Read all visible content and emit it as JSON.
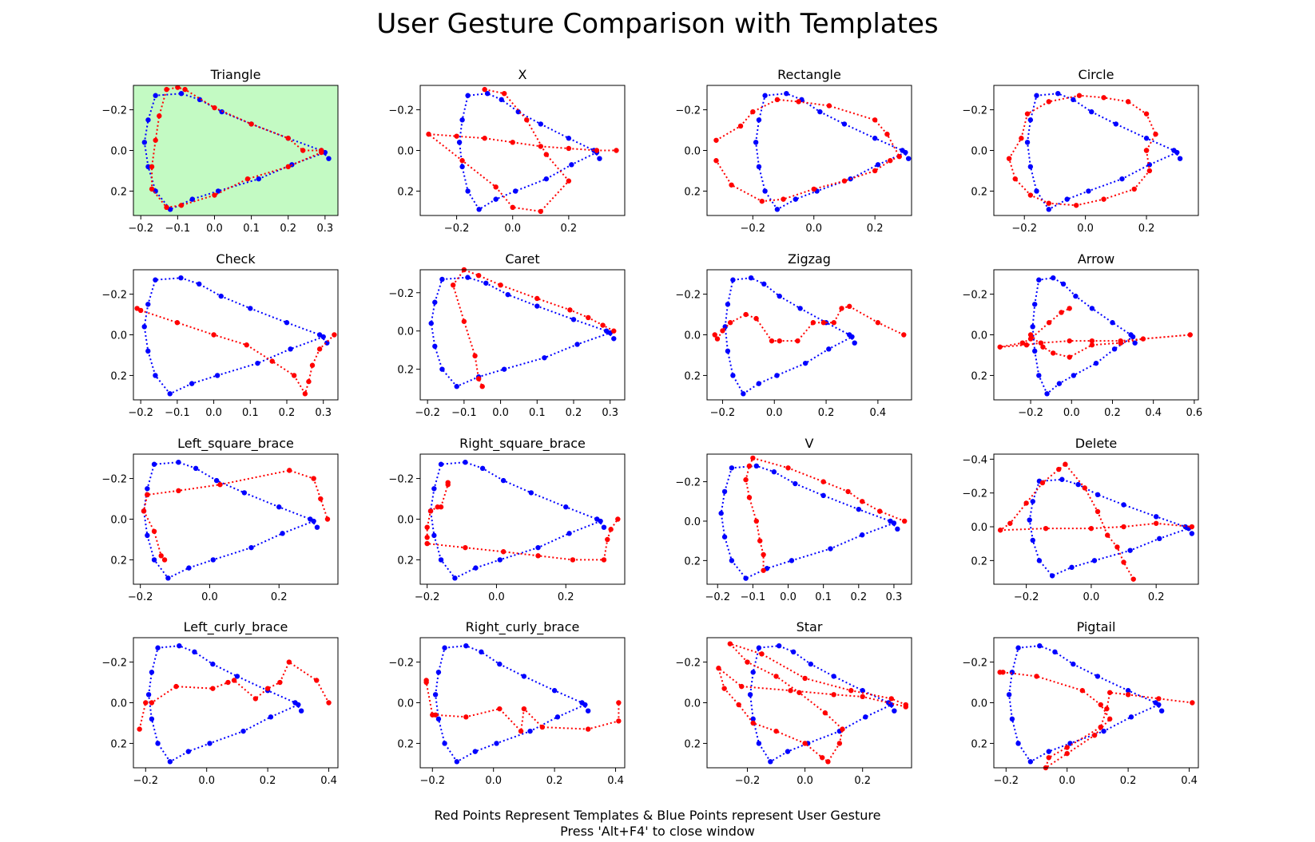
{
  "title": "User Gesture Comparison with Templates",
  "footer": {
    "line1": "Red Points Represent Templates & Blue Points represent User Gesture",
    "line2": "Press 'Alt+F4' to close window"
  },
  "colors": {
    "template": "#ff0000",
    "user": "#0000ff",
    "highlight": "#c3fac3"
  },
  "chart_data": {
    "type": "scatter",
    "y_inverted": true,
    "user_gesture": {
      "name": "User Gesture",
      "x": [
        0.31,
        0.29,
        0.2,
        0.1,
        0.02,
        -0.04,
        -0.09,
        -0.16,
        -0.18,
        -0.19,
        -0.18,
        -0.16,
        -0.12,
        -0.06,
        0.01,
        0.12,
        0.21,
        0.3
      ],
      "y": [
        0.04,
        0.0,
        -0.06,
        -0.13,
        -0.19,
        -0.25,
        -0.28,
        -0.27,
        -0.15,
        -0.04,
        0.08,
        0.2,
        0.29,
        0.24,
        0.2,
        0.14,
        0.07,
        0.01
      ]
    },
    "panels": [
      {
        "name": "Triangle",
        "highlight": true,
        "xticks": [
          -0.2,
          -0.1,
          0.0,
          0.1,
          0.2,
          0.3
        ],
        "yticks": [
          -0.2,
          0.0,
          0.2
        ],
        "xlim": [
          -0.22,
          0.335
        ],
        "ylim": [
          -0.32,
          0.32
        ],
        "template": {
          "x": [
            0.29,
            0.24,
            0.2,
            0.1,
            0.0,
            -0.08,
            -0.1,
            -0.13,
            -0.15,
            -0.16,
            -0.17,
            -0.17,
            -0.13,
            -0.09,
            0.0,
            0.09,
            0.2,
            0.29
          ],
          "y": [
            0.0,
            0.0,
            -0.06,
            -0.13,
            -0.21,
            -0.3,
            -0.31,
            -0.3,
            -0.17,
            -0.05,
            0.08,
            0.19,
            0.28,
            0.27,
            0.22,
            0.14,
            0.08,
            0.01
          ]
        }
      },
      {
        "name": "X",
        "highlight": false,
        "xticks": [
          -0.2,
          0.0,
          0.2
        ],
        "yticks": [
          -0.2,
          0.0,
          0.2
        ],
        "xlim": [
          -0.33,
          0.4
        ],
        "ylim": [
          -0.32,
          0.32
        ],
        "template": {
          "x": [
            -0.1,
            -0.03,
            0.05,
            0.12,
            0.2,
            0.1,
            0.0,
            -0.06,
            -0.18,
            -0.3,
            -0.2,
            -0.1,
            0.0,
            0.1,
            0.2,
            0.3,
            0.37
          ],
          "y": [
            -0.3,
            -0.28,
            -0.15,
            0.02,
            0.15,
            0.3,
            0.28,
            0.18,
            0.05,
            -0.08,
            -0.07,
            -0.06,
            -0.04,
            -0.02,
            -0.01,
            0.0,
            0.0
          ]
        }
      },
      {
        "name": "Rectangle",
        "highlight": false,
        "xticks": [
          -0.2,
          0.0,
          0.2
        ],
        "yticks": [
          -0.2,
          0.0,
          0.2
        ],
        "xlim": [
          -0.35,
          0.32
        ],
        "ylim": [
          -0.32,
          0.32
        ],
        "template": {
          "x": [
            -0.32,
            -0.24,
            -0.2,
            -0.12,
            -0.05,
            0.05,
            0.2,
            0.24,
            0.28,
            0.25,
            0.2,
            0.1,
            0.0,
            -0.1,
            -0.17,
            -0.27,
            -0.32
          ],
          "y": [
            -0.05,
            -0.12,
            -0.19,
            -0.25,
            -0.24,
            -0.22,
            -0.15,
            -0.08,
            0.03,
            0.05,
            0.1,
            0.15,
            0.19,
            0.24,
            0.25,
            0.17,
            0.05
          ]
        }
      },
      {
        "name": "Circle",
        "highlight": false,
        "xticks": [
          -0.2,
          0.0,
          0.2
        ],
        "yticks": [
          -0.2,
          0.0,
          0.2
        ],
        "xlim": [
          -0.3,
          0.37
        ],
        "ylim": [
          -0.32,
          0.32
        ],
        "template": {
          "x": [
            0.2,
            0.23,
            0.2,
            0.14,
            0.06,
            -0.02,
            -0.12,
            -0.19,
            -0.21,
            -0.25,
            -0.23,
            -0.18,
            -0.12,
            -0.03,
            0.06,
            0.16,
            0.21,
            0.2
          ],
          "y": [
            0.0,
            -0.08,
            -0.18,
            -0.24,
            -0.26,
            -0.27,
            -0.24,
            -0.18,
            -0.06,
            0.04,
            0.14,
            0.22,
            0.26,
            0.27,
            0.24,
            0.19,
            0.1,
            0.0
          ]
        }
      },
      {
        "name": "Check",
        "highlight": false,
        "xticks": [
          -0.2,
          -0.1,
          0.0,
          0.1,
          0.2,
          0.3
        ],
        "yticks": [
          -0.2,
          0.0,
          0.2
        ],
        "xlim": [
          -0.22,
          0.34
        ],
        "ylim": [
          -0.32,
          0.32
        ],
        "template": {
          "x": [
            -0.21,
            -0.2,
            -0.1,
            0.0,
            0.09,
            0.16,
            0.22,
            0.25,
            0.26,
            0.27,
            0.29,
            0.33
          ],
          "y": [
            -0.13,
            -0.12,
            -0.06,
            0.0,
            0.05,
            0.13,
            0.2,
            0.29,
            0.23,
            0.15,
            0.07,
            0.0
          ]
        }
      },
      {
        "name": "Caret",
        "highlight": false,
        "xticks": [
          -0.2,
          -0.1,
          0.0,
          0.1,
          0.2,
          0.3
        ],
        "yticks": [
          -0.2,
          0.0,
          0.2
        ],
        "xlim": [
          -0.22,
          0.34
        ],
        "ylim": [
          -0.32,
          0.36
        ],
        "template": {
          "x": [
            0.31,
            0.28,
            0.24,
            0.19,
            0.1,
            0.0,
            -0.06,
            -0.1,
            -0.13,
            -0.1,
            -0.07,
            -0.06,
            -0.05
          ],
          "y": [
            0.0,
            -0.03,
            -0.07,
            -0.11,
            -0.17,
            -0.24,
            -0.29,
            -0.32,
            -0.24,
            -0.05,
            0.13,
            0.25,
            0.29
          ]
        }
      },
      {
        "name": "Zigzag",
        "highlight": false,
        "xticks": [
          -0.2,
          0.0,
          0.2,
          0.4
        ],
        "yticks": [
          -0.2,
          0.0,
          0.2
        ],
        "xlim": [
          -0.26,
          0.53
        ],
        "ylim": [
          -0.32,
          0.32
        ],
        "template": {
          "x": [
            0.5,
            0.4,
            0.29,
            0.26,
            0.23,
            0.19,
            0.15,
            0.09,
            0.02,
            -0.01,
            -0.07,
            -0.11,
            -0.17,
            -0.2,
            -0.22,
            -0.23
          ],
          "y": [
            0.0,
            -0.06,
            -0.14,
            -0.13,
            -0.06,
            -0.06,
            -0.06,
            0.03,
            0.03,
            0.03,
            -0.08,
            -0.1,
            -0.06,
            -0.02,
            0.02,
            0.0
          ]
        }
      },
      {
        "name": "Arrow",
        "highlight": false,
        "xticks": [
          -0.2,
          0.0,
          0.2,
          0.4,
          0.6
        ],
        "yticks": [
          -0.2,
          0.0,
          0.2
        ],
        "xlim": [
          -0.38,
          0.62
        ],
        "ylim": [
          -0.32,
          0.32
        ],
        "template": {
          "x": [
            -0.2,
            -0.14,
            -0.09,
            -0.01,
            0.1,
            0.24,
            0.35,
            0.58,
            0.24,
            0.1,
            -0.01,
            -0.15,
            -0.22,
            -0.35,
            -0.24,
            -0.2,
            -0.11,
            -0.05,
            -0.01
          ],
          "y": [
            0.0,
            0.06,
            0.09,
            0.11,
            0.05,
            0.04,
            0.02,
            0.0,
            0.03,
            0.03,
            0.03,
            0.04,
            0.05,
            0.06,
            0.04,
            0.02,
            -0.06,
            -0.11,
            -0.13
          ]
        }
      },
      {
        "name": "Left_square_brace",
        "highlight": false,
        "xticks": [
          -0.2,
          0.0,
          0.2
        ],
        "yticks": [
          -0.2,
          0.0,
          0.2
        ],
        "xlim": [
          -0.22,
          0.37
        ],
        "ylim": [
          -0.32,
          0.32
        ],
        "template": {
          "x": [
            -0.13,
            -0.14,
            -0.16,
            -0.19,
            -0.18,
            -0.18,
            -0.09,
            0.03,
            0.23,
            0.3,
            0.32,
            0.34
          ],
          "y": [
            0.2,
            0.18,
            0.06,
            -0.04,
            -0.12,
            -0.12,
            -0.14,
            -0.17,
            -0.24,
            -0.2,
            -0.1,
            0.0
          ]
        }
      },
      {
        "name": "Right_square_brace",
        "highlight": false,
        "xticks": [
          -0.2,
          0.0,
          0.2
        ],
        "yticks": [
          -0.2,
          0.0,
          0.2
        ],
        "xlim": [
          -0.22,
          0.37
        ],
        "ylim": [
          -0.32,
          0.32
        ],
        "template": {
          "x": [
            -0.14,
            -0.14,
            -0.16,
            -0.17,
            -0.19,
            -0.2,
            -0.2,
            -0.2,
            -0.09,
            0.02,
            0.12,
            0.22,
            0.31,
            0.32,
            0.33,
            0.35
          ],
          "y": [
            -0.18,
            -0.17,
            -0.06,
            -0.06,
            -0.04,
            0.04,
            0.09,
            0.12,
            0.14,
            0.16,
            0.18,
            0.2,
            0.2,
            0.1,
            0.05,
            0.0
          ]
        }
      },
      {
        "name": "V",
        "highlight": false,
        "xticks": [
          -0.2,
          -0.1,
          0.0,
          0.1,
          0.2,
          0.3
        ],
        "yticks": [
          -0.2,
          0.0,
          0.2
        ],
        "xlim": [
          -0.23,
          0.35
        ],
        "ylim": [
          -0.34,
          0.32
        ],
        "template": {
          "x": [
            -0.07,
            -0.07,
            -0.08,
            -0.09,
            -0.11,
            -0.12,
            -0.11,
            -0.1,
            0.0,
            0.1,
            0.17,
            0.21,
            0.26,
            0.33
          ],
          "y": [
            0.25,
            0.17,
            0.1,
            0.0,
            -0.12,
            -0.21,
            -0.28,
            -0.32,
            -0.27,
            -0.2,
            -0.15,
            -0.1,
            -0.05,
            0.0
          ]
        }
      },
      {
        "name": "Delete",
        "highlight": false,
        "xticks": [
          -0.2,
          0.0,
          0.2
        ],
        "yticks": [
          -0.4,
          -0.2,
          0.0,
          0.2
        ],
        "xlim": [
          -0.3,
          0.33
        ],
        "ylim": [
          -0.43,
          0.34
        ],
        "template": {
          "x": [
            0.13,
            0.1,
            0.08,
            0.05,
            0.02,
            -0.02,
            -0.08,
            -0.1,
            -0.15,
            -0.2,
            -0.25,
            -0.28,
            -0.14,
            0.0,
            0.1,
            0.2,
            0.31
          ],
          "y": [
            0.31,
            0.21,
            0.12,
            0.05,
            -0.09,
            -0.23,
            -0.37,
            -0.34,
            -0.26,
            -0.14,
            -0.02,
            0.02,
            0.01,
            0.01,
            0.0,
            -0.02,
            0.0
          ]
        }
      },
      {
        "name": "Left_curly_brace",
        "highlight": false,
        "xticks": [
          -0.2,
          0.0,
          0.2,
          0.4
        ],
        "yticks": [
          -0.2,
          0.0,
          0.2
        ],
        "xlim": [
          -0.24,
          0.43
        ],
        "ylim": [
          -0.32,
          0.32
        ],
        "template": {
          "x": [
            -0.22,
            -0.2,
            -0.18,
            -0.1,
            0.02,
            0.07,
            0.09,
            0.16,
            0.2,
            0.24,
            0.27,
            0.36,
            0.4
          ],
          "y": [
            0.13,
            0.0,
            0.0,
            -0.08,
            -0.07,
            -0.1,
            -0.11,
            -0.02,
            -0.07,
            -0.1,
            -0.2,
            -0.11,
            0.0
          ]
        }
      },
      {
        "name": "Right_curly_brace",
        "highlight": false,
        "xticks": [
          -0.2,
          0.0,
          0.2,
          0.4
        ],
        "yticks": [
          -0.2,
          0.0,
          0.2
        ],
        "xlim": [
          -0.24,
          0.43
        ],
        "ylim": [
          -0.32,
          0.32
        ],
        "template": {
          "x": [
            -0.22,
            -0.22,
            -0.2,
            -0.19,
            -0.09,
            0.02,
            0.09,
            0.1,
            0.16,
            0.31,
            0.41,
            0.41
          ],
          "y": [
            -0.11,
            -0.1,
            0.06,
            0.06,
            0.07,
            0.03,
            0.14,
            0.03,
            0.12,
            0.13,
            0.09,
            0.0
          ]
        }
      },
      {
        "name": "Star",
        "highlight": false,
        "xticks": [
          -0.2,
          0.0,
          0.2
        ],
        "yticks": [
          -0.2,
          0.0,
          0.2
        ],
        "xlim": [
          -0.34,
          0.37
        ],
        "ylim": [
          -0.32,
          0.32
        ],
        "template": {
          "x": [
            0.35,
            0.2,
            0.1,
            -0.05,
            -0.22,
            -0.3,
            -0.28,
            -0.23,
            -0.18,
            -0.1,
            0.0,
            0.06,
            0.08,
            0.12,
            0.13,
            0.07,
            -0.02,
            -0.1,
            -0.2,
            -0.26,
            -0.15,
            0.0,
            0.16,
            0.3,
            0.35
          ],
          "y": [
            0.02,
            -0.03,
            -0.04,
            -0.06,
            -0.08,
            -0.17,
            -0.07,
            0.01,
            0.1,
            0.14,
            0.2,
            0.27,
            0.29,
            0.2,
            0.13,
            0.05,
            -0.05,
            -0.13,
            -0.2,
            -0.29,
            -0.24,
            -0.12,
            -0.06,
            -0.02,
            0.01
          ]
        }
      },
      {
        "name": "Pigtail",
        "highlight": false,
        "xticks": [
          -0.2,
          0.0,
          0.2,
          0.4
        ],
        "yticks": [
          -0.2,
          0.0,
          0.2
        ],
        "xlim": [
          -0.24,
          0.43
        ],
        "ylim": [
          -0.32,
          0.32
        ],
        "template": {
          "x": [
            0.41,
            0.3,
            0.2,
            0.14,
            0.13,
            0.11,
            0.0,
            -0.06,
            -0.07,
            0.0,
            0.09,
            0.14,
            0.11,
            0.05,
            -0.1,
            -0.21,
            -0.22
          ],
          "y": [
            0.0,
            -0.02,
            -0.04,
            -0.05,
            0.03,
            0.12,
            0.22,
            0.27,
            0.32,
            0.25,
            0.16,
            0.08,
            0.01,
            -0.06,
            -0.13,
            -0.15,
            -0.15
          ]
        }
      }
    ]
  }
}
